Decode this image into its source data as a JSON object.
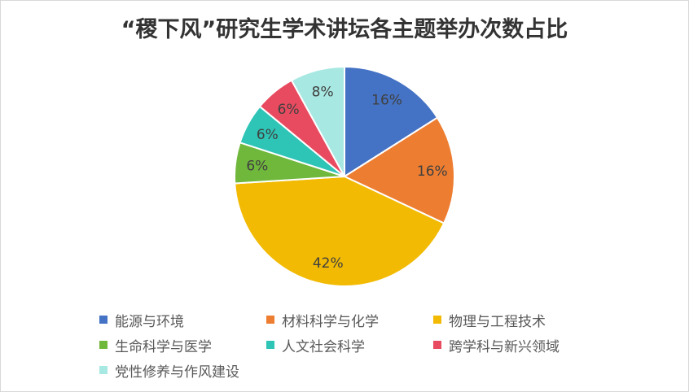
{
  "chart_data": {
    "type": "pie",
    "title": "“稷下风”研究生学术讲坛各主题举办次数占比",
    "start_angle": "top",
    "direction": "clockwise",
    "legend_position": "bottom",
    "slices": [
      {
        "label": "能源与环境",
        "value": 16,
        "text": "16%",
        "color": "#4472C4"
      },
      {
        "label": "材料科学与化学",
        "value": 16,
        "text": "16%",
        "color": "#ED7D31"
      },
      {
        "label": "物理与工程技术",
        "value": 42,
        "text": "42%",
        "color": "#F2BA02"
      },
      {
        "label": "生命科学与医学",
        "value": 6,
        "text": "6%",
        "color": "#70B83C"
      },
      {
        "label": "人文社会科学",
        "value": 6,
        "text": "6%",
        "color": "#2EC4B6"
      },
      {
        "label": "跨学科与新兴领域",
        "value": 6,
        "text": "6%",
        "color": "#E84A5F"
      },
      {
        "label": "党性修养与作风建设",
        "value": 8,
        "text": "8%",
        "color": "#A8E8E2"
      }
    ]
  }
}
